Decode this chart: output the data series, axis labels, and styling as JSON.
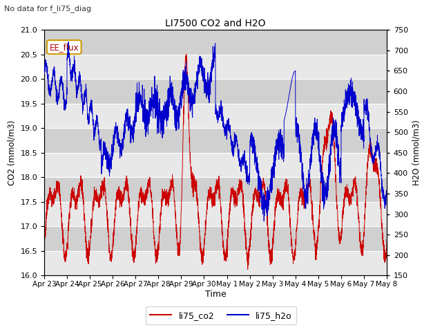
{
  "title": "LI7500 CO2 and H2O",
  "suptitle": "No data for f_li75_diag",
  "xlabel": "Time",
  "ylabel_left": "CO2 (mmol/m3)",
  "ylabel_right": "H2O (mmol/m3)",
  "ylim_left": [
    16.0,
    21.0
  ],
  "ylim_right": [
    150,
    750
  ],
  "color_co2": "#cc0000",
  "color_h2o": "#0000cc",
  "legend_labels": [
    "li75_co2",
    "li75_h2o"
  ],
  "annotation_text": "EE_flux",
  "xtick_labels": [
    "Apr 23",
    "Apr 24",
    "Apr 25",
    "Apr 26",
    "Apr 27",
    "Apr 28",
    "Apr 29",
    "Apr 30",
    "May 1",
    "May 2",
    "May 3",
    "May 4",
    "May 5",
    "May 6",
    "May 7",
    "May 8"
  ],
  "yticks_left": [
    16.0,
    16.5,
    17.0,
    17.5,
    18.0,
    18.5,
    19.0,
    19.5,
    20.0,
    20.5,
    21.0
  ],
  "yticks_right": [
    150,
    200,
    250,
    300,
    350,
    400,
    450,
    500,
    550,
    600,
    650,
    700,
    750
  ],
  "background_color": "#d8d8d8",
  "band_color_light": "#e8e8e8",
  "band_color_dark": "#d0d0d0"
}
